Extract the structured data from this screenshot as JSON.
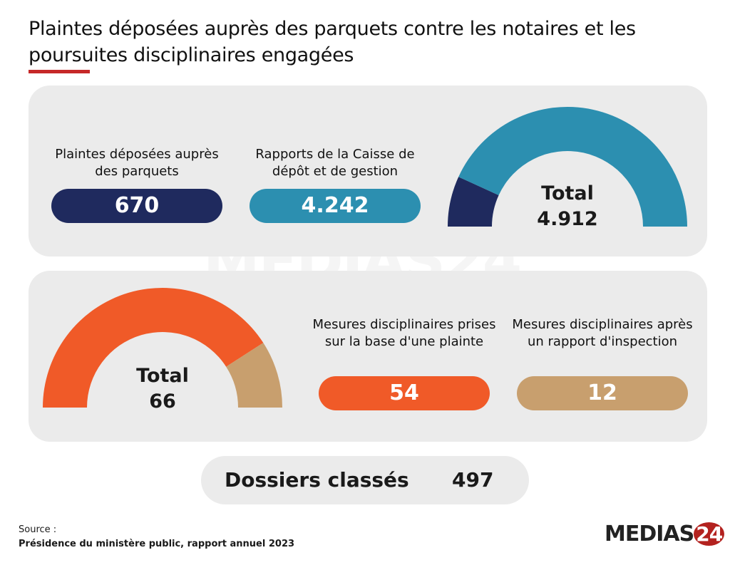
{
  "title": "Plaintes déposées auprès des parquets contre les notaires et les poursuites disciplinaires engagées",
  "chart_data": [
    {
      "type": "pie",
      "variant": "half-donut",
      "total_label": "Total",
      "total_value": "4.912",
      "categories": [
        "Plaintes déposées auprès des parquets",
        "Rapports de la Caisse de dépôt et de gestion"
      ],
      "values": [
        670,
        4242
      ],
      "value_labels": [
        "670",
        "4.242"
      ],
      "colors": [
        "#1f2a5e",
        "#2c8fb0"
      ]
    },
    {
      "type": "pie",
      "variant": "half-donut",
      "total_label": "Total",
      "total_value": "66",
      "categories": [
        "Mesures disciplinaires prises sur la base d'une plainte",
        "Mesures disciplinaires après un rapport d'inspection"
      ],
      "values": [
        54,
        12
      ],
      "value_labels": [
        "54",
        "12"
      ],
      "colors": [
        "#f05a28",
        "#c89f6e"
      ]
    }
  ],
  "dossiers": {
    "label": "Dossiers classés",
    "value": "497"
  },
  "source": {
    "label": "Source :",
    "text": "Présidence du ministère public, rapport annuel 2023"
  },
  "logo": {
    "text": "MEDIAS",
    "number": "24"
  },
  "watermark": "MEDIAS24"
}
